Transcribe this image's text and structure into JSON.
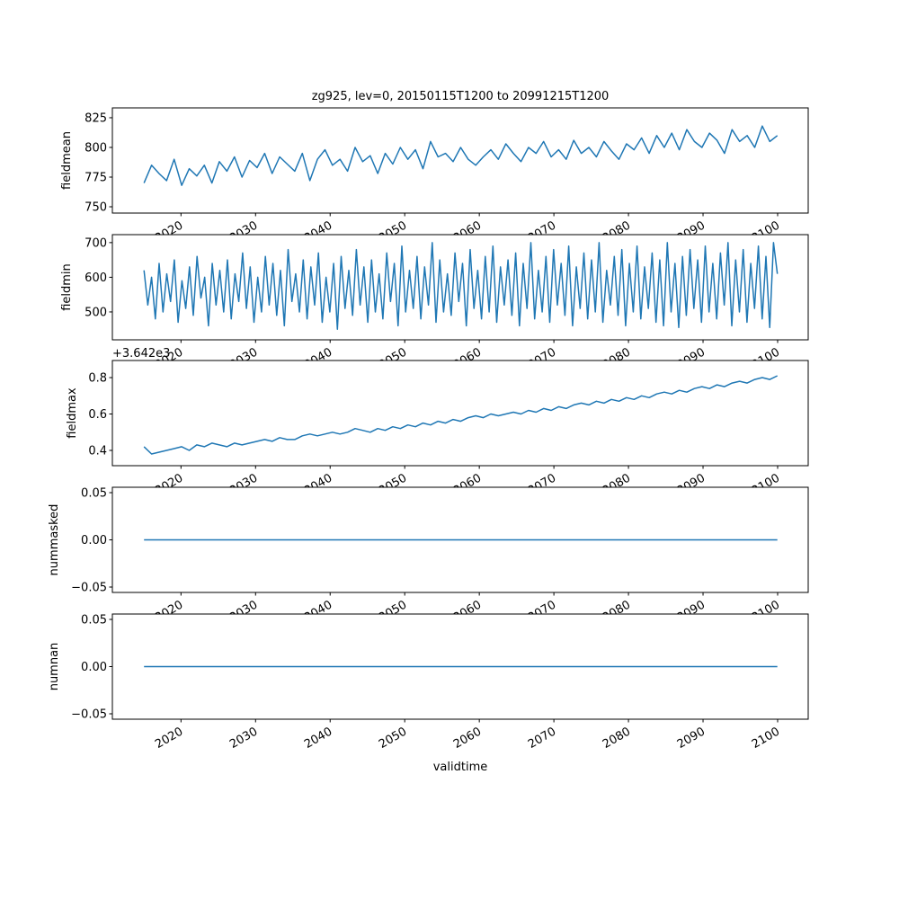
{
  "chart_data": {
    "type": "line",
    "title": "zg925, lev=0, 20150115T1200 to 20991215T1200",
    "xlabel": "validtime",
    "xlim": [
      2010.8,
      2104.1
    ],
    "x_ticks": [
      2020,
      2030,
      2040,
      2050,
      2060,
      2070,
      2080,
      2090,
      2100
    ],
    "x_tick_labels": [
      "2020",
      "2030",
      "2040",
      "2050",
      "2060",
      "2070",
      "2080",
      "2090",
      "2100"
    ],
    "line_color": "#1f77b4",
    "panels": [
      {
        "ylabel": "fieldmean",
        "ylim": [
          744.7,
          833.3
        ],
        "y_ticks": [
          750,
          775,
          800,
          825
        ],
        "y_tick_labels": [
          "750",
          "775",
          "800",
          "825"
        ],
        "offset_text": "",
        "x_range": [
          2015.04,
          2099.96
        ],
        "values": [
          770,
          785,
          778,
          772,
          790,
          768,
          782,
          776,
          785,
          770,
          788,
          780,
          792,
          775,
          789,
          783,
          795,
          778,
          792,
          786,
          780,
          795,
          772,
          790,
          798,
          785,
          790,
          780,
          800,
          788,
          793,
          778,
          795,
          786,
          800,
          790,
          798,
          782,
          805,
          792,
          795,
          788,
          800,
          790,
          785,
          792,
          798,
          790,
          803,
          795,
          788,
          800,
          795,
          805,
          792,
          798,
          790,
          806,
          795,
          800,
          792,
          805,
          797,
          790,
          803,
          798,
          808,
          795,
          810,
          800,
          812,
          798,
          815,
          805,
          800,
          812,
          806,
          795,
          815,
          805,
          810,
          800,
          818,
          805,
          810
        ]
      },
      {
        "ylabel": "fieldmin",
        "ylim": [
          419.5,
          723
        ],
        "y_ticks": [
          500,
          600,
          700
        ],
        "y_tick_labels": [
          "500",
          "600",
          "700"
        ],
        "offset_text": "",
        "x_range": [
          2015.04,
          2099.96
        ],
        "values": [
          620,
          520,
          600,
          480,
          640,
          500,
          610,
          530,
          650,
          470,
          590,
          510,
          630,
          490,
          660,
          540,
          600,
          460,
          640,
          520,
          620,
          500,
          650,
          480,
          610,
          530,
          670,
          510,
          630,
          470,
          600,
          500,
          660,
          520,
          640,
          490,
          620,
          460,
          680,
          530,
          610,
          500,
          650,
          480,
          630,
          520,
          670,
          470,
          600,
          500,
          640,
          450,
          660,
          510,
          620,
          490,
          680,
          520,
          630,
          470,
          650,
          500,
          610,
          480,
          670,
          530,
          640,
          460,
          690,
          500,
          620,
          510,
          660,
          480,
          630,
          520,
          700,
          470,
          650,
          500,
          610,
          490,
          670,
          530,
          640,
          460,
          680,
          510,
          620,
          480,
          660,
          500,
          690,
          470,
          630,
          520,
          650,
          490,
          670,
          460,
          640,
          510,
          700,
          480,
          620,
          500,
          660,
          470,
          680,
          520,
          640,
          490,
          690,
          460,
          630,
          510,
          670,
          480,
          650,
          500,
          700,
          470,
          620,
          520,
          660,
          490,
          680,
          460,
          640,
          500,
          690,
          480,
          630,
          510,
          670,
          470,
          650,
          460,
          700,
          500,
          640,
          455,
          660,
          490,
          680,
          510,
          650,
          470,
          690,
          500,
          640,
          480,
          670,
          520,
          700,
          460,
          650,
          500,
          680,
          470,
          640,
          510,
          690,
          480,
          660,
          455,
          700,
          610
        ]
      },
      {
        "ylabel": "fieldmax",
        "ylim": [
          0.316,
          0.894
        ],
        "y_ticks": [
          0.4,
          0.6,
          0.8
        ],
        "y_tick_labels": [
          "0.4",
          "0.6",
          "0.8"
        ],
        "offset_text": "+3.642e3",
        "x_range": [
          2015.04,
          2099.96
        ],
        "values": [
          0.42,
          0.38,
          0.39,
          0.4,
          0.41,
          0.42,
          0.4,
          0.43,
          0.42,
          0.44,
          0.43,
          0.42,
          0.44,
          0.43,
          0.44,
          0.45,
          0.46,
          0.45,
          0.47,
          0.46,
          0.46,
          0.48,
          0.49,
          0.48,
          0.49,
          0.5,
          0.49,
          0.5,
          0.52,
          0.51,
          0.5,
          0.52,
          0.51,
          0.53,
          0.52,
          0.54,
          0.53,
          0.55,
          0.54,
          0.56,
          0.55,
          0.57,
          0.56,
          0.58,
          0.59,
          0.58,
          0.6,
          0.59,
          0.6,
          0.61,
          0.6,
          0.62,
          0.61,
          0.63,
          0.62,
          0.64,
          0.63,
          0.65,
          0.66,
          0.65,
          0.67,
          0.66,
          0.68,
          0.67,
          0.69,
          0.68,
          0.7,
          0.69,
          0.71,
          0.72,
          0.71,
          0.73,
          0.72,
          0.74,
          0.75,
          0.74,
          0.76,
          0.75,
          0.77,
          0.78,
          0.77,
          0.79,
          0.8,
          0.79,
          0.81
        ]
      },
      {
        "ylabel": "nummasked",
        "ylim": [
          -0.0557,
          0.0557
        ],
        "y_ticks": [
          -0.05,
          0.0,
          0.05
        ],
        "y_tick_labels": [
          "−0.05",
          "0.00",
          "0.05"
        ],
        "offset_text": "",
        "x_range": [
          2015.04,
          2099.96
        ],
        "values": [
          0,
          0
        ]
      },
      {
        "ylabel": "numnan",
        "ylim": [
          -0.0557,
          0.0557
        ],
        "y_ticks": [
          -0.05,
          0.0,
          0.05
        ],
        "y_tick_labels": [
          "−0.05",
          "0.00",
          "0.05"
        ],
        "offset_text": "",
        "x_range": [
          2015.04,
          2099.96
        ],
        "values": [
          0,
          0
        ]
      }
    ]
  }
}
